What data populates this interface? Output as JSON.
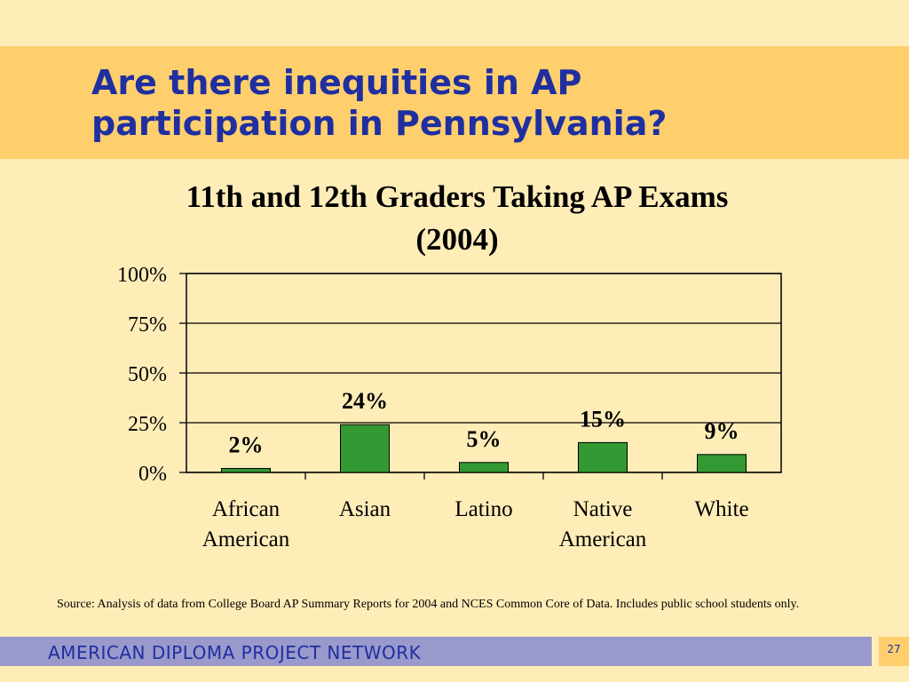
{
  "slide": {
    "title_line1": "Are there inequities in AP",
    "title_line2": "participation in Pennsylvania?",
    "source": "Source:  Analysis of data from College Board AP Summary Reports for 2004 and NCES Common Core of Data.  Includes public school students only.",
    "footer": "AMERICAN DIPLOMA PROJECT NETWORK",
    "page_number": "27"
  },
  "chart_data": {
    "type": "bar",
    "title_line1": "11th and 12th Graders Taking AP Exams",
    "title_line2": "(2004)",
    "categories": [
      [
        "African",
        "American"
      ],
      [
        "Asian"
      ],
      [
        "Latino"
      ],
      [
        "Native",
        "American"
      ],
      [
        "White"
      ]
    ],
    "values": [
      2,
      24,
      5,
      15,
      9
    ],
    "data_labels": [
      "2%",
      "24%",
      "5%",
      "15%",
      "9%"
    ],
    "ylim": [
      0,
      100
    ],
    "yticks": [
      0,
      25,
      50,
      75,
      100
    ],
    "ytick_labels": [
      "0%",
      "25%",
      "50%",
      "75%",
      "100%"
    ],
    "grid": true,
    "colors": {
      "bar": "#339933",
      "gridline": "#000000"
    }
  }
}
